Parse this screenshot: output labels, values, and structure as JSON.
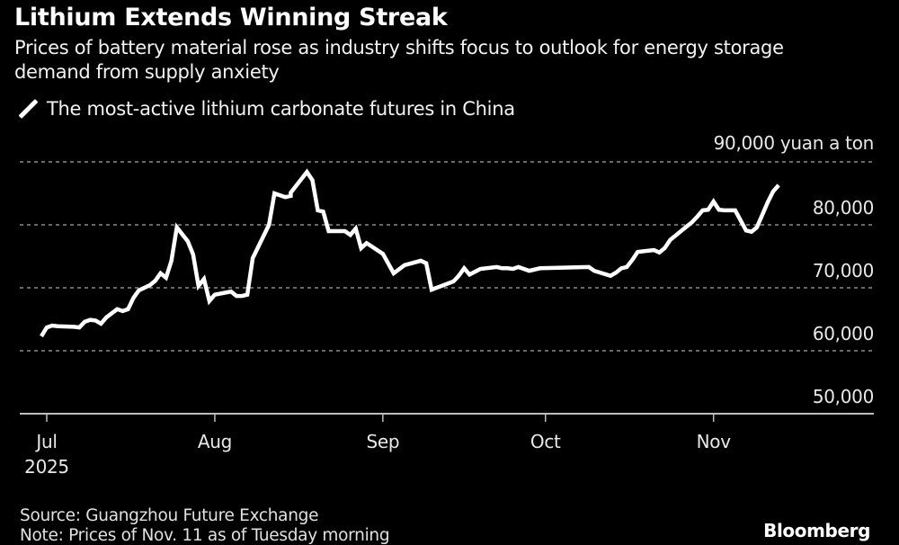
{
  "header": {
    "title": "Lithium Extends Winning Streak",
    "subtitle": "Prices of battery material rose as industry shifts focus to outlook for energy storage demand from supply anxiety"
  },
  "legend": {
    "icon": "line-swatch-icon",
    "label": "The most-active lithium carbonate futures in China"
  },
  "footer": {
    "source": "Source: Guangzhou Future Exchange",
    "note": "Note: Prices of Nov. 11 as of Tuesday morning",
    "brand": "Bloomberg"
  },
  "colors": {
    "background": "#000000",
    "line": "#ffffff",
    "grid": "#8a8a8a",
    "text": "#e8e8e8"
  },
  "chart_data": {
    "type": "line",
    "title": "Lithium Extends Winning Streak",
    "subtitle": "Prices of battery material rose as industry shifts focus to outlook for energy storage demand from supply anxiety",
    "xlabel": "",
    "ylabel": "yuan a ton",
    "unit_label": "90,000 yuan a ton",
    "ylim": [
      50000,
      90000
    ],
    "xlim": [
      "2025-06-30",
      "2025-11-27"
    ],
    "grid": true,
    "legend_position": "top-left",
    "y_ticks": [
      {
        "value": 50000,
        "label": "50,000"
      },
      {
        "value": 60000,
        "label": "60,000"
      },
      {
        "value": 70000,
        "label": "70,000"
      },
      {
        "value": 80000,
        "label": "80,000"
      },
      {
        "value": 90000,
        "label": "90,000"
      }
    ],
    "x_ticks": [
      {
        "date": "2025-07-01",
        "label": "Jul",
        "sublabel": "2025"
      },
      {
        "date": "2025-08-01",
        "label": "Aug",
        "sublabel": ""
      },
      {
        "date": "2025-09-01",
        "label": "Sep",
        "sublabel": ""
      },
      {
        "date": "2025-10-01",
        "label": "Oct",
        "sublabel": ""
      },
      {
        "date": "2025-11-01",
        "label": "Nov",
        "sublabel": ""
      }
    ],
    "series": [
      {
        "name": "The most-active lithium carbonate futures in China",
        "points": [
          [
            "2025-06-30",
            62300
          ],
          [
            "2025-07-01",
            63700
          ],
          [
            "2025-07-02",
            64000
          ],
          [
            "2025-07-03",
            63900
          ],
          [
            "2025-07-06",
            63800
          ],
          [
            "2025-07-07",
            63700
          ],
          [
            "2025-07-08",
            64600
          ],
          [
            "2025-07-09",
            64900
          ],
          [
            "2025-07-10",
            64800
          ],
          [
            "2025-07-11",
            64300
          ],
          [
            "2025-07-12",
            65300
          ],
          [
            "2025-07-14",
            66600
          ],
          [
            "2025-07-15",
            66300
          ],
          [
            "2025-07-16",
            66600
          ],
          [
            "2025-07-17",
            68400
          ],
          [
            "2025-07-18",
            69600
          ],
          [
            "2025-07-20",
            70400
          ],
          [
            "2025-07-21",
            71100
          ],
          [
            "2025-07-22",
            72300
          ],
          [
            "2025-07-23",
            71600
          ],
          [
            "2025-07-24",
            74300
          ],
          [
            "2025-07-25",
            79600
          ],
          [
            "2025-07-27",
            77400
          ],
          [
            "2025-07-28",
            75300
          ],
          [
            "2025-07-29",
            70300
          ],
          [
            "2025-07-30",
            71400
          ],
          [
            "2025-07-31",
            67900
          ],
          [
            "2025-08-01",
            68900
          ],
          [
            "2025-08-04",
            69400
          ],
          [
            "2025-08-05",
            68700
          ],
          [
            "2025-08-06",
            68700
          ],
          [
            "2025-08-07",
            68900
          ],
          [
            "2025-08-08",
            74700
          ],
          [
            "2025-08-11",
            80000
          ],
          [
            "2025-08-12",
            85000
          ],
          [
            "2025-08-13",
            84700
          ],
          [
            "2025-08-14",
            84400
          ],
          [
            "2025-08-15",
            84600
          ],
          [
            "2025-08-15",
            85100
          ],
          [
            "2025-08-18",
            88400
          ],
          [
            "2025-08-19",
            87100
          ],
          [
            "2025-08-20",
            82300
          ],
          [
            "2025-08-21",
            82100
          ],
          [
            "2025-08-22",
            79000
          ],
          [
            "2025-08-25",
            79000
          ],
          [
            "2025-08-26",
            78400
          ],
          [
            "2025-08-27",
            79400
          ],
          [
            "2025-08-28",
            76300
          ],
          [
            "2025-08-29",
            77100
          ],
          [
            "2025-09-01",
            75400
          ],
          [
            "2025-09-03",
            72300
          ],
          [
            "2025-09-05",
            73600
          ],
          [
            "2025-09-08",
            74300
          ],
          [
            "2025-09-09",
            73900
          ],
          [
            "2025-09-10",
            69700
          ],
          [
            "2025-09-14",
            71000
          ],
          [
            "2025-09-15",
            71900
          ],
          [
            "2025-09-16",
            73100
          ],
          [
            "2025-09-17",
            72100
          ],
          [
            "2025-09-19",
            73000
          ],
          [
            "2025-09-22",
            73300
          ],
          [
            "2025-09-23",
            73100
          ],
          [
            "2025-09-24",
            73100
          ],
          [
            "2025-09-25",
            73000
          ],
          [
            "2025-09-26",
            73300
          ],
          [
            "2025-09-28",
            72700
          ],
          [
            "2025-09-30",
            73100
          ],
          [
            "2025-10-09",
            73300
          ],
          [
            "2025-10-10",
            72700
          ],
          [
            "2025-10-13",
            71900
          ],
          [
            "2025-10-14",
            72400
          ],
          [
            "2025-10-15",
            73100
          ],
          [
            "2025-10-16",
            73300
          ],
          [
            "2025-10-17",
            74400
          ],
          [
            "2025-10-18",
            75700
          ],
          [
            "2025-10-21",
            76000
          ],
          [
            "2025-10-22",
            75600
          ],
          [
            "2025-10-23",
            76300
          ],
          [
            "2025-10-24",
            77600
          ],
          [
            "2025-10-27",
            79700
          ],
          [
            "2025-10-28",
            80400
          ],
          [
            "2025-10-29",
            81300
          ],
          [
            "2025-10-30",
            82300
          ],
          [
            "2025-10-31",
            82400
          ],
          [
            "2025-11-01",
            83700
          ],
          [
            "2025-11-02",
            82400
          ],
          [
            "2025-11-03",
            82300
          ],
          [
            "2025-11-05",
            82300
          ],
          [
            "2025-11-07",
            79100
          ],
          [
            "2025-11-08",
            78900
          ],
          [
            "2025-11-09",
            79600
          ],
          [
            "2025-11-11",
            83600
          ],
          [
            "2025-11-12",
            85300
          ],
          [
            "2025-11-13",
            86300
          ]
        ]
      }
    ]
  }
}
